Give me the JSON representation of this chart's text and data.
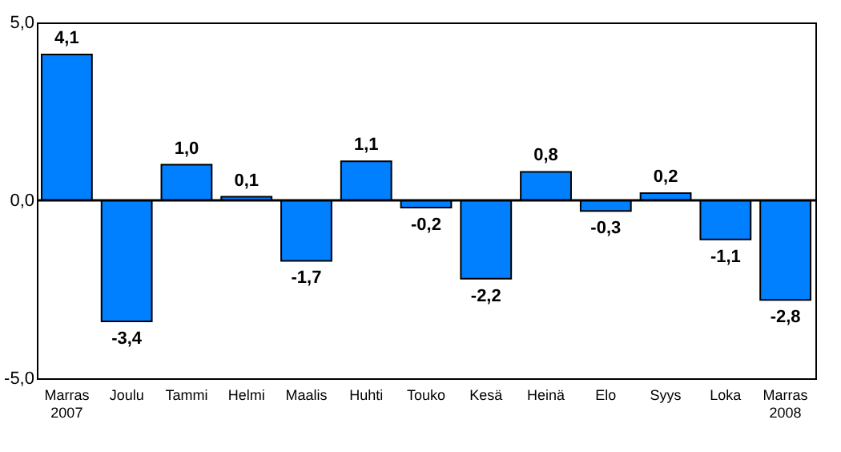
{
  "chart_data": {
    "type": "bar",
    "categories": [
      "Marras\n2007",
      "Joulu",
      "Tammi",
      "Helmi",
      "Maalis",
      "Huhti",
      "Touko",
      "Kesä",
      "Heinä",
      "Elo",
      "Syys",
      "Loka",
      "Marras\n2008"
    ],
    "values": [
      4.1,
      -3.4,
      1.0,
      0.1,
      -1.7,
      1.1,
      -0.2,
      -2.2,
      0.8,
      -0.3,
      0.2,
      -1.1,
      -2.8
    ],
    "value_labels": [
      "4,1",
      "-3,4",
      "1,0",
      "0,1",
      "-1,7",
      "1,1",
      "-0,2",
      "-2,2",
      "0,8",
      "-0,3",
      "0,2",
      "-1,1",
      "-2,8"
    ],
    "color": "#0080ff",
    "ylim": [
      -5,
      5
    ],
    "yticks": [
      {
        "value": -5,
        "label": "-5,0"
      },
      {
        "value": 0,
        "label": "0,0"
      },
      {
        "value": 5,
        "label": "5,0"
      }
    ],
    "ref_lines": [
      {
        "axis": "y",
        "value": 0,
        "color": "#000000"
      }
    ],
    "grid": false
  }
}
